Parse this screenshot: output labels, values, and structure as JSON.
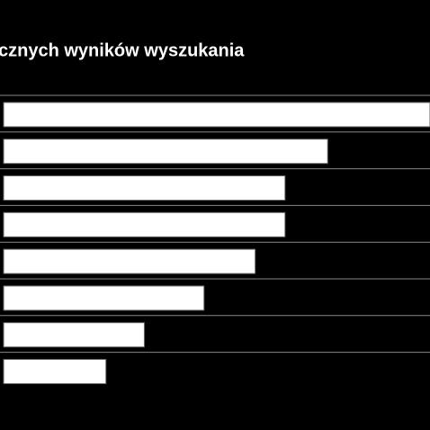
{
  "chart_data": {
    "type": "bar",
    "orientation": "horizontal",
    "title": "cznych wyników wyszukania",
    "values": [
      100,
      76,
      66,
      66,
      59,
      47,
      33,
      24
    ],
    "xlim": [
      0,
      100
    ],
    "color": "#ffffff"
  }
}
